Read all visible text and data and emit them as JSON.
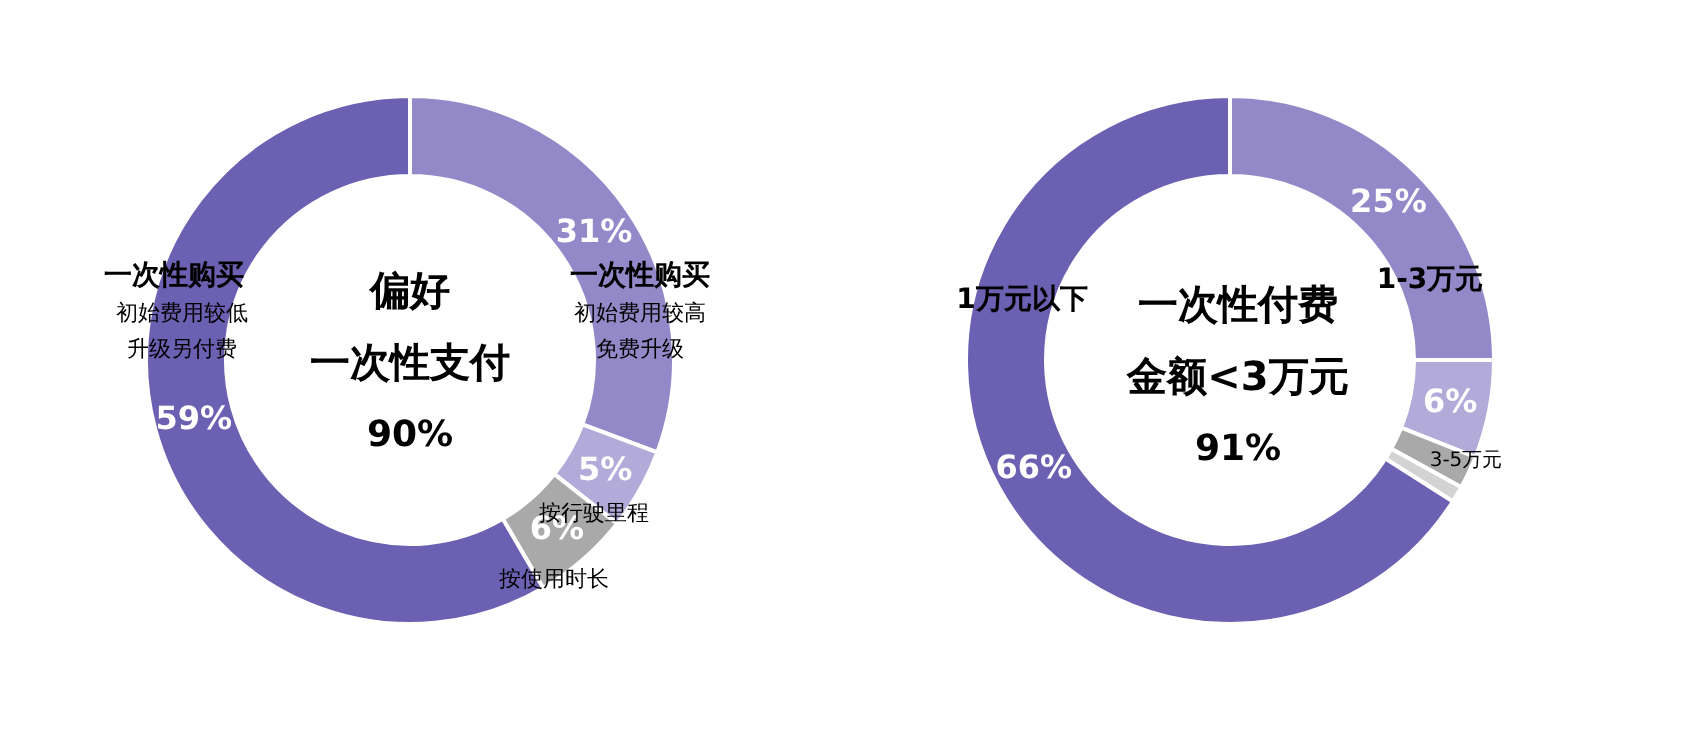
{
  "chart_data": [
    {
      "type": "donut",
      "categories": [
        "一次性购买",
        "按行驶里程",
        "按使用时长",
        "一次性购买"
      ],
      "values": [
        31,
        5,
        6,
        59
      ],
      "colors": [
        "#9389c9",
        "#b2abd9",
        "#a9a9a9",
        "#6b60b1"
      ],
      "value_labels": [
        "31%",
        "5%",
        "6%",
        "59%"
      ],
      "annotations": [
        "偏好",
        "一次性支付",
        "90%",
        "初始费用较高",
        "免费升级",
        "初始费用较低",
        "升级另付费"
      ],
      "legend": false
    },
    {
      "type": "donut",
      "categories": [
        "1-3万元",
        "3-5万元",
        null,
        null,
        "1万元以下"
      ],
      "values": [
        25,
        6,
        2,
        1,
        66
      ],
      "colors": [
        "#9389c9",
        "#b2abd9",
        "#a9a9a9",
        "#d3d3d3",
        "#6b60b1"
      ],
      "value_labels": [
        "25%",
        "6%",
        null,
        null,
        "66%"
      ],
      "annotations": [
        "一次性付费",
        "金额<3万元",
        "91%"
      ],
      "legend": false
    }
  ]
}
